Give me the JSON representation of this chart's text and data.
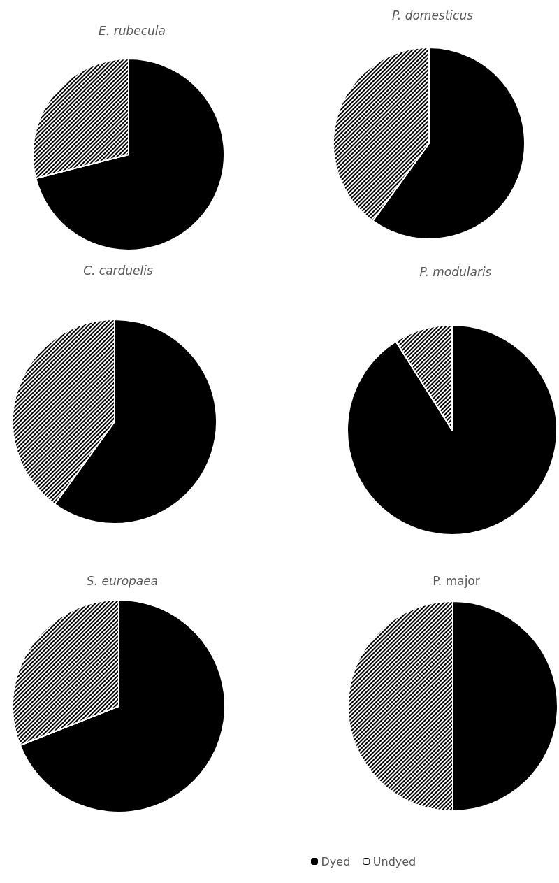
{
  "chart_data": [
    {
      "type": "pie",
      "title": "E. rubecula",
      "categories": [
        null,
        null
      ],
      "values": [
        71,
        29
      ],
      "colors": [
        "#000000",
        "#ffffff"
      ]
    },
    {
      "type": "pie",
      "title": "P. domesticus",
      "categories": [
        null,
        null
      ],
      "values": [
        60,
        40
      ],
      "colors": [
        "#000000",
        "#ffffff"
      ]
    },
    {
      "type": "pie",
      "title": "C. carduelis",
      "categories": [
        null,
        null
      ],
      "values": [
        60,
        40
      ],
      "colors": [
        "#000000",
        "#ffffff"
      ]
    },
    {
      "type": "pie",
      "title": "P. modularis",
      "categories": [
        null,
        null
      ],
      "values": [
        91,
        9
      ],
      "colors": [
        "#000000",
        "#ffffff"
      ]
    },
    {
      "type": "pie",
      "title": "S. europaea",
      "categories": [
        null,
        null
      ],
      "values": [
        69,
        31
      ],
      "colors": [
        "#000000",
        "#ffffff"
      ]
    },
    {
      "type": "pie",
      "title": "P. major",
      "categories": [
        "Dyed",
        "Undyed"
      ],
      "values": [
        50,
        50
      ],
      "colors": [
        "#000000",
        "#ffffff"
      ],
      "legend": "bottom"
    }
  ]
}
